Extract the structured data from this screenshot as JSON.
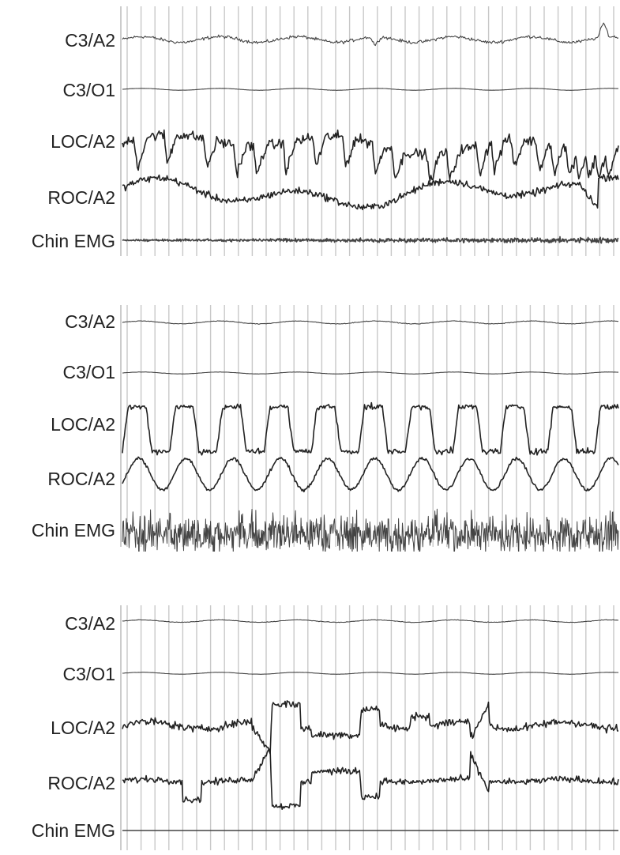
{
  "chart_data": [
    {
      "type": "line",
      "title": "",
      "channels": [
        "C3/A2",
        "C3/O1",
        "LOC/A2",
        "ROC/A2",
        "Chin EMG"
      ],
      "grid": true,
      "traces": [
        {
          "name": "C3/A2",
          "amplitude": 0.25,
          "noise": 0.25,
          "spikes": [
            {
              "at": 0.51,
              "amp": -0.9
            },
            {
              "at": 0.97,
              "amp": 1.5
            }
          ]
        },
        {
          "name": "C3/O1",
          "amplitude": 0.05,
          "noise": 0.05
        },
        {
          "name": "LOC/A2",
          "amplitude": 1.0,
          "noise": 0.35,
          "pattern": "saccades",
          "peaks": [
            0.03,
            0.09,
            0.17,
            0.23,
            0.27,
            0.33,
            0.39,
            0.45,
            0.51,
            0.55,
            0.62,
            0.66,
            0.72,
            0.75,
            0.79,
            0.84,
            0.87,
            0.9,
            0.92,
            0.94,
            0.96,
            0.98
          ]
        },
        {
          "name": "ROC/A2",
          "amplitude": 0.8,
          "noise": 0.3,
          "pattern": "wavy"
        },
        {
          "name": "Chin EMG",
          "amplitude": 0.12,
          "noise": 0.12,
          "pattern": "emg_low"
        }
      ]
    },
    {
      "type": "line",
      "title": "",
      "channels": [
        "C3/A2",
        "C3/O1",
        "LOC/A2",
        "ROC/A2",
        "Chin EMG"
      ],
      "grid": true,
      "traces": [
        {
          "name": "C3/A2",
          "amplitude": 0.1,
          "noise": 0.1
        },
        {
          "name": "C3/O1",
          "amplitude": 0.05,
          "noise": 0.05
        },
        {
          "name": "LOC/A2",
          "amplitude": 1.0,
          "noise": 0.2,
          "pattern": "square",
          "cycles": 10.5
        },
        {
          "name": "ROC/A2",
          "amplitude": 0.7,
          "noise": 0.15,
          "pattern": "sine",
          "cycles": 10.5
        },
        {
          "name": "Chin EMG",
          "amplitude": 1.0,
          "noise": 1.0,
          "pattern": "emg_high"
        }
      ]
    },
    {
      "type": "line",
      "title": "",
      "channels": [
        "C3/A2",
        "C3/O1",
        "LOC/A2",
        "ROC/A2",
        "Chin EMG"
      ],
      "grid": true,
      "traces": [
        {
          "name": "C3/A2",
          "amplitude": 0.1,
          "noise": 0.1
        },
        {
          "name": "C3/O1",
          "amplitude": 0.05,
          "noise": 0.05
        },
        {
          "name": "LOC/A2",
          "amplitude": 1.0,
          "noise": 0.25,
          "pattern": "rem"
        },
        {
          "name": "ROC/A2",
          "amplitude": 1.0,
          "noise": 0.15,
          "pattern": "rem_inverse"
        },
        {
          "name": "Chin EMG",
          "amplitude": 0.0,
          "noise": 0.02,
          "pattern": "flat"
        }
      ]
    }
  ]
}
